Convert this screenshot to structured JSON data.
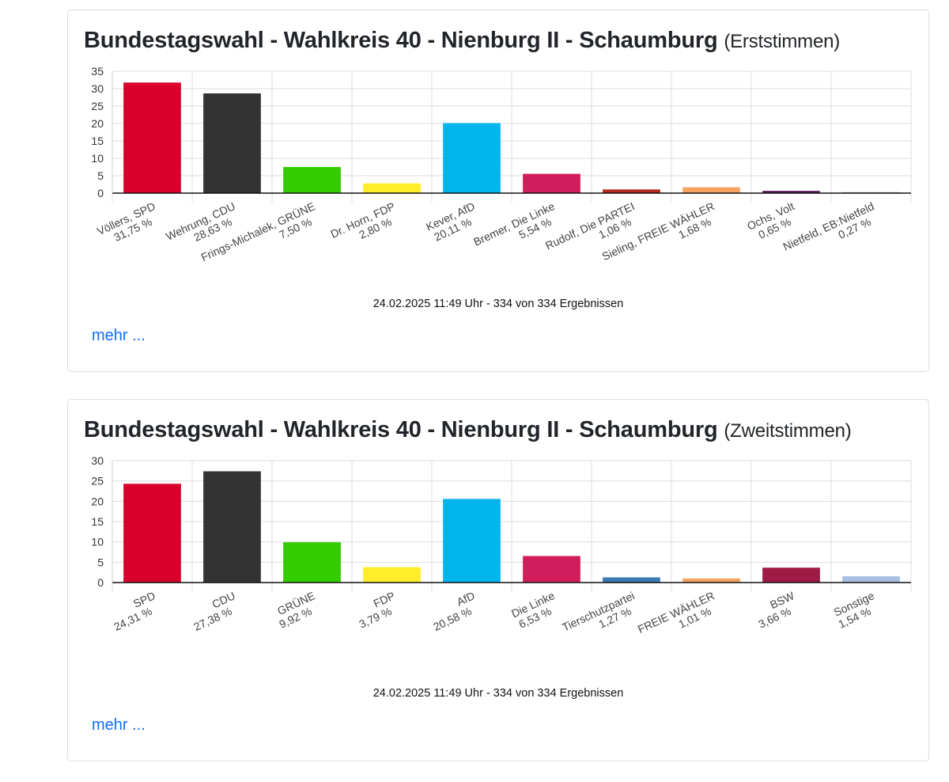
{
  "charts": [
    {
      "title_main": "Bundestagswahl - Wahlkreis 40 - Nienburg II - Schaumburg",
      "title_sub": "(Erststimmen)",
      "footer": "24.02.2025 11:49 Uhr - 334 von 334 Ergebnissen",
      "more_label": "mehr ...",
      "chart_data": {
        "type": "bar",
        "title": "Bundestagswahl - Wahlkreis 40 - Nienburg II - Schaumburg (Erststimmen)",
        "ylim": [
          0,
          35
        ],
        "yticks": [
          0,
          5,
          10,
          15,
          20,
          25,
          30,
          35
        ],
        "categories": [
          "Völlers, SPD",
          "Wehrung, CDU",
          "Frings-Michalek, GRÜNE",
          "Dr. Horn, FDP",
          "Kever, AfD",
          "Bremer, Die Linke",
          "Rudolf, Die PARTEI",
          "Sieling, FREIE WÄHLER",
          "Ochs, Volt",
          "Nietfeld, EB:Nietfeld"
        ],
        "value_labels": [
          "31,75 %",
          "28,63 %",
          "7,50 %",
          "2,80 %",
          "20,11 %",
          "5,54 %",
          "1,06 %",
          "1,68 %",
          "0,65 %",
          "0,27 %"
        ],
        "values": [
          31.75,
          28.63,
          7.5,
          2.8,
          20.11,
          5.54,
          1.06,
          1.68,
          0.65,
          0.27
        ],
        "colors": [
          "#d9002b",
          "#333333",
          "#33cc00",
          "#ffed2a",
          "#00b4ee",
          "#d11d5b",
          "#b5271c",
          "#f5a460",
          "#5b1a5c",
          "#9a9a9a"
        ]
      }
    },
    {
      "title_main": "Bundestagswahl - Wahlkreis 40 - Nienburg II - Schaumburg",
      "title_sub": "(Zweitstimmen)",
      "footer": "24.02.2025 11:49 Uhr - 334 von 334 Ergebnissen",
      "more_label": "mehr ...",
      "chart_data": {
        "type": "bar",
        "title": "Bundestagswahl - Wahlkreis 40 - Nienburg II - Schaumburg (Zweitstimmen)",
        "ylim": [
          0,
          30
        ],
        "yticks": [
          0,
          5,
          10,
          15,
          20,
          25,
          30
        ],
        "categories": [
          "SPD",
          "CDU",
          "GRÜNE",
          "FDP",
          "AfD",
          "Die Linke",
          "Tierschutzpartei",
          "FREIE WÄHLER",
          "BSW",
          "Sonstige"
        ],
        "value_labels": [
          "24,31 %",
          "27,38 %",
          "9,92 %",
          "3,79 %",
          "20,58 %",
          "6,53 %",
          "1,27 %",
          "1,01 %",
          "3,66 %",
          "1,54 %"
        ],
        "values": [
          24.31,
          27.38,
          9.92,
          3.79,
          20.58,
          6.53,
          1.27,
          1.01,
          3.66,
          1.54
        ],
        "colors": [
          "#d9002b",
          "#333333",
          "#33cc00",
          "#ffed2a",
          "#00b4ee",
          "#d11d5b",
          "#3c7ab5",
          "#f5a460",
          "#9d1b44",
          "#a8bfe3"
        ]
      }
    }
  ]
}
